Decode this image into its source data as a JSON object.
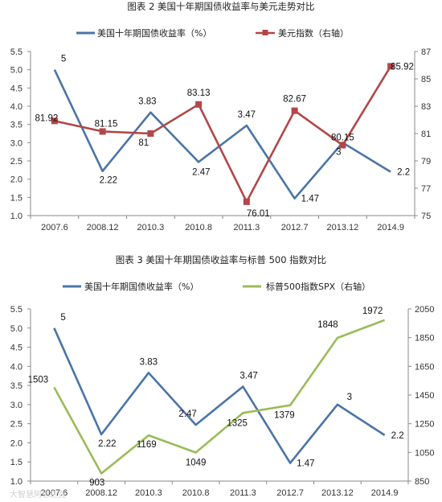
{
  "chart_data": [
    {
      "type": "line",
      "title": "图表 2 美国十年期国债收益率与美元走势对比",
      "categories": [
        "2007.6",
        "2008.12",
        "2010.3",
        "2010.8",
        "2011.3",
        "2012.7",
        "2013.12",
        "2014.9"
      ],
      "series": [
        {
          "name": "美国十年期国债收益率（%）",
          "axis": "left",
          "color": "#4a74a7",
          "marker": "none",
          "values": [
            5,
            2.22,
            3.83,
            2.47,
            3.47,
            1.47,
            3,
            2.2
          ],
          "labels": [
            "5",
            "2.22",
            "3.83",
            "2.47",
            "3.47",
            "1.47",
            "3",
            "2.2"
          ]
        },
        {
          "name": "美元指数（右轴）",
          "axis": "right",
          "color": "#b24747",
          "marker": "square",
          "values": [
            81.92,
            81.15,
            81,
            83.13,
            76.01,
            82.67,
            80.15,
            85.92
          ],
          "labels": [
            "81.92",
            "81.15",
            "81",
            "83.13",
            "76.01",
            "82.67",
            "80.15",
            "85.92"
          ]
        }
      ],
      "y_left": {
        "min": 1.0,
        "max": 5.5,
        "ticks": [
          "1.0",
          "1.5",
          "2.0",
          "2.5",
          "3.0",
          "3.5",
          "4.0",
          "4.5",
          "5.0",
          "5.5"
        ]
      },
      "y_right": {
        "min": 75,
        "max": 87,
        "ticks": [
          "75",
          "77",
          "79",
          "81",
          "83",
          "85",
          "87"
        ]
      },
      "legend": "top",
      "grid": false
    },
    {
      "type": "line",
      "title": "图表 3 美国十年期国债收益率与标普 500 指数对比",
      "categories": [
        "2007.6",
        "2008.12",
        "2010.3",
        "2010.8",
        "2011.3",
        "2012.7",
        "2013.12",
        "2014.9"
      ],
      "series": [
        {
          "name": "美国十年期国债收益率（%）",
          "axis": "left",
          "color": "#4a74a7",
          "marker": "none",
          "values": [
            5,
            2.22,
            3.83,
            2.47,
            3.47,
            1.47,
            3,
            2.2
          ],
          "labels": [
            "5",
            "2.22",
            "3.83",
            "2.47",
            "3.47",
            "1.47",
            "3",
            "2.2"
          ]
        },
        {
          "name": "标普500指数SPX（右轴）",
          "axis": "right",
          "color": "#9bbb59",
          "marker": "none",
          "values": [
            1503,
            903,
            1169,
            1049,
            1325,
            1379,
            1848,
            1972
          ],
          "labels": [
            "1503",
            "903",
            "1169",
            "1049",
            "1325",
            "1379",
            "1848",
            "1972"
          ]
        }
      ],
      "y_left": {
        "min": 1.0,
        "max": 5.5,
        "ticks": [
          "1.0",
          "1.5",
          "2.0",
          "2.5",
          "3.0",
          "3.5",
          "4.0",
          "4.5",
          "5.0",
          "5.5"
        ]
      },
      "y_right": {
        "min": 850,
        "max": 2050,
        "ticks": [
          "850",
          "1050",
          "1250",
          "1450",
          "1650",
          "1850",
          "2050"
        ]
      },
      "legend": "top",
      "grid": false
    }
  ],
  "watermark": "大智慧阿思达克"
}
